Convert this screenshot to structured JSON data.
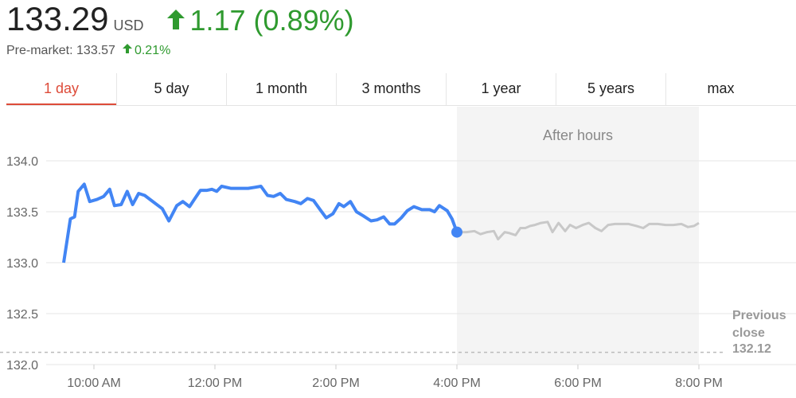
{
  "header": {
    "price": "133.29",
    "currency": "USD",
    "change": "1.17 (0.89%)",
    "premarket": "Pre-market: 133.57",
    "premarket_change": "0.21%"
  },
  "tabs": [
    "1 day",
    "5 day",
    "1 month",
    "3 months",
    "1 year",
    "5 years",
    "max"
  ],
  "chart_data": {
    "type": "line",
    "xlim": [
      8.5,
      21.5
    ],
    "ylim": [
      132,
      134.5
    ],
    "xticks": [
      {
        "value": 10,
        "label": "10:00 AM"
      },
      {
        "value": 12,
        "label": "12:00 PM"
      },
      {
        "value": 14,
        "label": "2:00 PM"
      },
      {
        "value": 16,
        "label": "4:00 PM"
      },
      {
        "value": 18,
        "label": "6:00 PM"
      },
      {
        "value": 20,
        "label": "8:00 PM"
      }
    ],
    "yticks": [
      {
        "value": 132,
        "label": "132.0"
      },
      {
        "value": 132.5,
        "label": "132.5"
      },
      {
        "value": 133,
        "label": "133.0"
      },
      {
        "value": 133.5,
        "label": "133.5"
      },
      {
        "value": 134,
        "label": "134.0"
      }
    ],
    "grid": true,
    "shaded_region": {
      "xlim": [
        16,
        20
      ],
      "label": "After hours",
      "color": "#f4f4f4"
    },
    "reference_line": {
      "value": 132.12,
      "label": "Previous close",
      "color": "#bbbbbb"
    },
    "series": [
      {
        "color": "#4285f4",
        "x": [
          9.5,
          9.61,
          9.68,
          9.74,
          9.84,
          9.93,
          10.05,
          10.16,
          10.26,
          10.34,
          10.45,
          10.55,
          10.64,
          10.74,
          10.84,
          10.95,
          11.13,
          11.24,
          11.37,
          11.47,
          11.58,
          11.68,
          11.76,
          11.87,
          11.95,
          12.03,
          12.11,
          12.26,
          12.42,
          12.55,
          12.66,
          12.76,
          12.87,
          12.97,
          13.08,
          13.18,
          13.32,
          13.42,
          13.53,
          13.63,
          13.74,
          13.84,
          13.95,
          14.05,
          14.13,
          14.24,
          14.34,
          14.45,
          14.58,
          14.68,
          14.79,
          14.89,
          14.97,
          15.08,
          15.18,
          15.29,
          15.42,
          15.55,
          15.63,
          15.71,
          15.84,
          15.92,
          16.0
        ],
        "values": [
          133.0,
          133.43,
          133.45,
          133.7,
          133.77,
          133.6,
          133.62,
          133.65,
          133.72,
          133.56,
          133.57,
          133.7,
          133.57,
          133.68,
          133.66,
          133.61,
          133.53,
          133.41,
          133.56,
          133.6,
          133.55,
          133.64,
          133.71,
          133.71,
          133.72,
          133.7,
          133.75,
          133.73,
          133.73,
          133.73,
          133.74,
          133.75,
          133.66,
          133.65,
          133.68,
          133.62,
          133.6,
          133.58,
          133.63,
          133.61,
          133.52,
          133.44,
          133.48,
          133.58,
          133.55,
          133.6,
          133.5,
          133.46,
          133.41,
          133.42,
          133.45,
          133.38,
          133.38,
          133.44,
          133.51,
          133.55,
          133.52,
          133.52,
          133.5,
          133.56,
          133.51,
          133.43,
          133.3
        ]
      },
      {
        "color": "#c8c8c8",
        "x": [
          16.0,
          16.16,
          16.29,
          16.39,
          16.5,
          16.61,
          16.68,
          16.79,
          16.87,
          16.97,
          17.05,
          17.13,
          17.21,
          17.29,
          17.39,
          17.5,
          17.58,
          17.68,
          17.79,
          17.87,
          17.97,
          18.08,
          18.18,
          18.29,
          18.39,
          18.5,
          18.61,
          18.71,
          18.84,
          18.97,
          19.08,
          19.18,
          19.32,
          19.45,
          19.58,
          19.71,
          19.82,
          19.92,
          20.0
        ],
        "values": [
          133.3,
          133.3,
          133.31,
          133.28,
          133.3,
          133.31,
          133.23,
          133.3,
          133.29,
          133.27,
          133.34,
          133.34,
          133.36,
          133.37,
          133.39,
          133.4,
          133.3,
          133.39,
          133.31,
          133.37,
          133.34,
          133.37,
          133.39,
          133.34,
          133.31,
          133.37,
          133.38,
          133.38,
          133.38,
          133.36,
          133.34,
          133.38,
          133.38,
          133.37,
          133.37,
          133.38,
          133.35,
          133.36,
          133.39
        ]
      }
    ]
  }
}
